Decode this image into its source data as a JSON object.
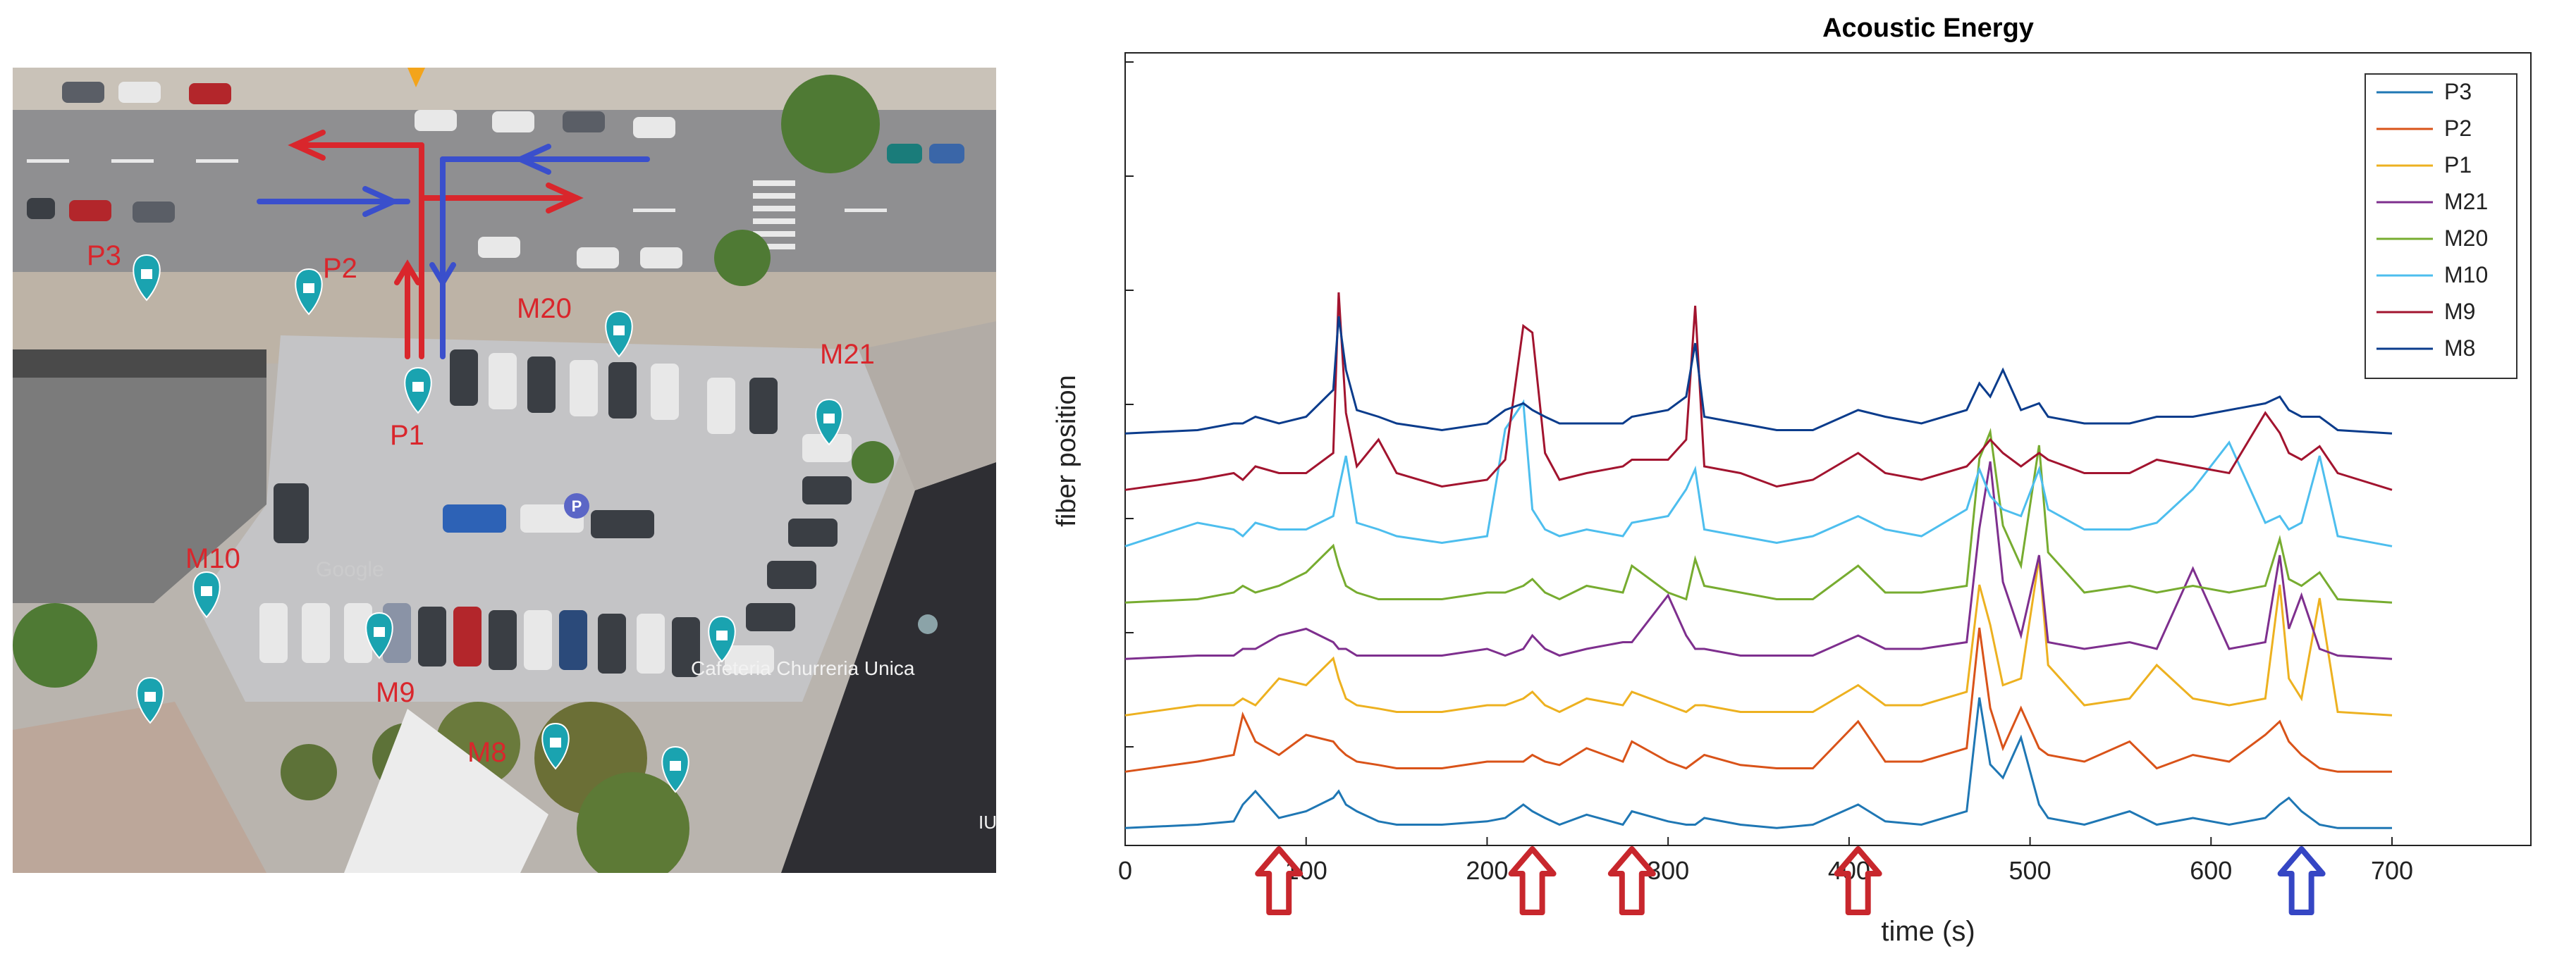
{
  "map": {
    "labels": [
      "P3",
      "P2",
      "P1",
      "M20",
      "M21",
      "M10",
      "M9",
      "M8"
    ],
    "poi_text": "Cafeteria Churreria Unica",
    "watermark": "Google",
    "edge_text": "IU",
    "colors": {
      "red": "#d9262c",
      "blue": "#3a4fcc",
      "pin": "#1aa3b0"
    }
  },
  "chart_data": {
    "type": "line",
    "title": "Acoustic Energy",
    "xlabel": "time (s)",
    "ylabel": "fiber position",
    "xlim": [
      0,
      700
    ],
    "xticks": [
      0,
      100,
      200,
      300,
      400,
      500,
      600,
      700
    ],
    "grid": false,
    "legend_position": "top-right",
    "x": [
      0,
      40,
      60,
      65,
      72,
      85,
      100,
      115,
      118,
      122,
      128,
      140,
      150,
      175,
      200,
      210,
      220,
      225,
      232,
      240,
      255,
      275,
      280,
      300,
      310,
      315,
      320,
      340,
      360,
      380,
      405,
      420,
      440,
      465,
      472,
      478,
      485,
      495,
      505,
      510,
      530,
      555,
      570,
      590,
      610,
      630,
      638,
      643,
      650,
      660,
      670,
      700
    ],
    "series": [
      {
        "name": "P3",
        "color": "#1f77b4",
        "values": [
          0.05,
          0.1,
          0.15,
          0.4,
          0.6,
          0.2,
          0.3,
          0.5,
          0.6,
          0.4,
          0.3,
          0.15,
          0.1,
          0.1,
          0.15,
          0.2,
          0.4,
          0.3,
          0.2,
          0.1,
          0.25,
          0.1,
          0.3,
          0.15,
          0.1,
          0.1,
          0.2,
          0.1,
          0.05,
          0.1,
          0.4,
          0.15,
          0.1,
          0.3,
          2.0,
          1.0,
          0.8,
          1.4,
          0.4,
          0.2,
          0.1,
          0.3,
          0.1,
          0.2,
          0.1,
          0.2,
          0.4,
          0.5,
          0.3,
          0.1,
          0.05,
          0.05
        ]
      },
      {
        "name": "P2",
        "color": "#d95319",
        "values": [
          0.05,
          0.2,
          0.3,
          0.9,
          0.5,
          0.3,
          0.6,
          0.5,
          0.4,
          0.3,
          0.2,
          0.15,
          0.1,
          0.1,
          0.2,
          0.2,
          0.2,
          0.3,
          0.2,
          0.15,
          0.4,
          0.2,
          0.5,
          0.2,
          0.1,
          0.2,
          0.3,
          0.15,
          0.1,
          0.1,
          0.8,
          0.2,
          0.2,
          0.4,
          2.2,
          1.0,
          0.4,
          1.0,
          0.4,
          0.3,
          0.2,
          0.5,
          0.1,
          0.3,
          0.2,
          0.6,
          0.8,
          0.5,
          0.3,
          0.1,
          0.05,
          0.05
        ]
      },
      {
        "name": "P1",
        "color": "#edb120",
        "values": [
          0.05,
          0.2,
          0.2,
          0.3,
          0.2,
          0.6,
          0.5,
          0.9,
          0.6,
          0.3,
          0.2,
          0.15,
          0.1,
          0.1,
          0.2,
          0.2,
          0.3,
          0.4,
          0.2,
          0.1,
          0.3,
          0.2,
          0.4,
          0.2,
          0.1,
          0.2,
          0.2,
          0.1,
          0.1,
          0.1,
          0.5,
          0.2,
          0.2,
          0.4,
          2.0,
          1.4,
          0.5,
          0.6,
          2.4,
          0.8,
          0.2,
          0.3,
          0.8,
          0.3,
          0.2,
          0.3,
          2.0,
          0.6,
          0.3,
          1.8,
          0.1,
          0.05
        ]
      },
      {
        "name": "M21",
        "color": "#7e2f8e",
        "values": [
          0.05,
          0.1,
          0.1,
          0.2,
          0.2,
          0.4,
          0.5,
          0.3,
          0.2,
          0.2,
          0.1,
          0.1,
          0.1,
          0.1,
          0.2,
          0.1,
          0.2,
          0.4,
          0.2,
          0.1,
          0.2,
          0.3,
          0.3,
          1.0,
          0.4,
          0.2,
          0.2,
          0.1,
          0.1,
          0.1,
          0.4,
          0.2,
          0.2,
          0.3,
          2.0,
          3.0,
          1.2,
          0.4,
          1.6,
          0.3,
          0.2,
          0.3,
          0.2,
          1.4,
          0.2,
          0.3,
          1.6,
          0.5,
          1.0,
          0.2,
          0.1,
          0.05
        ]
      },
      {
        "name": "M20",
        "color": "#77ac30",
        "values": [
          0.05,
          0.1,
          0.2,
          0.3,
          0.2,
          0.3,
          0.5,
          0.9,
          0.6,
          0.3,
          0.2,
          0.1,
          0.1,
          0.1,
          0.2,
          0.2,
          0.3,
          0.4,
          0.2,
          0.1,
          0.3,
          0.2,
          0.6,
          0.2,
          0.1,
          0.7,
          0.3,
          0.2,
          0.1,
          0.1,
          0.6,
          0.2,
          0.2,
          0.3,
          2.2,
          2.6,
          1.2,
          0.6,
          2.4,
          0.8,
          0.2,
          0.3,
          0.2,
          0.3,
          0.2,
          0.3,
          1.0,
          0.4,
          0.3,
          0.5,
          0.1,
          0.05
        ]
      },
      {
        "name": "M10",
        "color": "#4dbeee",
        "values": [
          0.05,
          0.4,
          0.3,
          0.2,
          0.4,
          0.3,
          0.3,
          0.5,
          0.9,
          1.4,
          0.4,
          0.3,
          0.2,
          0.1,
          0.2,
          1.8,
          2.2,
          0.6,
          0.3,
          0.2,
          0.3,
          0.2,
          0.4,
          0.5,
          0.9,
          1.2,
          0.3,
          0.2,
          0.1,
          0.2,
          0.5,
          0.3,
          0.2,
          0.6,
          1.2,
          0.8,
          0.6,
          0.5,
          1.2,
          0.6,
          0.3,
          0.3,
          0.4,
          0.9,
          1.6,
          0.4,
          0.5,
          0.3,
          0.4,
          1.4,
          0.2,
          0.05
        ]
      },
      {
        "name": "M9",
        "color": "#a2142f",
        "values": [
          0.05,
          0.2,
          0.3,
          0.2,
          0.4,
          0.3,
          0.3,
          0.6,
          3.0,
          1.2,
          0.4,
          0.8,
          0.3,
          0.1,
          0.2,
          0.5,
          2.5,
          2.4,
          0.6,
          0.2,
          0.3,
          0.4,
          0.5,
          0.5,
          0.8,
          2.8,
          0.4,
          0.3,
          0.1,
          0.2,
          0.6,
          0.3,
          0.2,
          0.4,
          0.6,
          0.8,
          0.6,
          0.4,
          0.6,
          0.5,
          0.3,
          0.3,
          0.5,
          0.4,
          0.3,
          1.2,
          0.9,
          0.6,
          0.5,
          0.7,
          0.3,
          0.05
        ]
      },
      {
        "name": "M8",
        "color": "#0b3c8c",
        "values": [
          0.05,
          0.1,
          0.2,
          0.2,
          0.3,
          0.2,
          0.3,
          0.7,
          1.8,
          1.0,
          0.4,
          0.3,
          0.2,
          0.1,
          0.2,
          0.4,
          0.5,
          0.4,
          0.3,
          0.2,
          0.2,
          0.2,
          0.3,
          0.4,
          0.6,
          1.4,
          0.3,
          0.2,
          0.1,
          0.1,
          0.4,
          0.3,
          0.2,
          0.4,
          0.8,
          0.6,
          1.0,
          0.4,
          0.5,
          0.3,
          0.2,
          0.2,
          0.3,
          0.3,
          0.4,
          0.5,
          0.6,
          0.4,
          0.3,
          0.3,
          0.1,
          0.05
        ]
      }
    ],
    "event_arrows": [
      {
        "x": 85,
        "color": "red"
      },
      {
        "x": 225,
        "color": "red"
      },
      {
        "x": 280,
        "color": "red"
      },
      {
        "x": 405,
        "color": "red"
      },
      {
        "x": 650,
        "color": "blue"
      }
    ]
  }
}
